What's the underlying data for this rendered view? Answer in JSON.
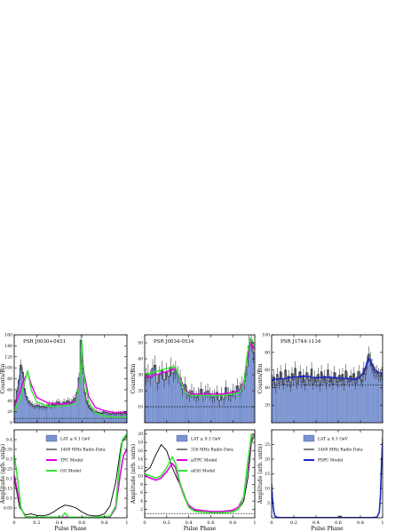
{
  "figure": {
    "xlabel": "Pulse Phase",
    "colors": {
      "hist_fill": "#7b93d0",
      "hist_edge": "#3d4e8a",
      "lat_data": "#222222",
      "tpc": "#e000e0",
      "og": "#33e633",
      "pspc": "#1a28c8",
      "radio": "#000000",
      "background_line": "#000000"
    }
  },
  "chart_data": [
    {
      "type": "bar",
      "panel": "J0030-top",
      "annotation": "PSR J0030+0451",
      "ylabel": "Counts/Bin",
      "x_ticks": [
        0,
        0.2,
        0.4,
        0.6,
        0.8,
        1
      ],
      "xlim": [
        0,
        1
      ],
      "ylim": [
        0,
        160
      ],
      "y_ticks": [
        0,
        20,
        40,
        60,
        80,
        100,
        120,
        140,
        160
      ],
      "background_level": 8,
      "counts": [
        37,
        58,
        78,
        105,
        92,
        62,
        48,
        40,
        36,
        33,
        30,
        31,
        32,
        30,
        29,
        30,
        28,
        31,
        33,
        30,
        34,
        32,
        36,
        38,
        35,
        34,
        38,
        36,
        40,
        38,
        37,
        42,
        45,
        55,
        82,
        150,
        98,
        55,
        40,
        32,
        27,
        24,
        22,
        21,
        19,
        18,
        17,
        20,
        19,
        18,
        17,
        16,
        18,
        16,
        17,
        18,
        17,
        16,
        18,
        17
      ],
      "series": [
        {
          "name": "TPC Model",
          "x": [
            0,
            0.05,
            0.08,
            0.12,
            0.15,
            0.2,
            0.3,
            0.4,
            0.5,
            0.55,
            0.58,
            0.6,
            0.62,
            0.66,
            0.72,
            0.8,
            0.9,
            1.0
          ],
          "y": [
            30,
            55,
            75,
            92,
            70,
            46,
            36,
            34,
            35,
            40,
            70,
            128,
            90,
            48,
            28,
            22,
            18,
            20
          ]
        },
        {
          "name": "OG Model",
          "x": [
            0,
            0.05,
            0.08,
            0.12,
            0.15,
            0.2,
            0.3,
            0.4,
            0.5,
            0.55,
            0.58,
            0.6,
            0.62,
            0.66,
            0.72,
            0.8,
            0.9,
            1.0
          ],
          "y": [
            20,
            40,
            65,
            95,
            60,
            38,
            30,
            30,
            32,
            36,
            66,
            150,
            82,
            38,
            18,
            12,
            10,
            10
          ]
        }
      ]
    },
    {
      "type": "line",
      "panel": "J0030-bottom",
      "ylabel": "Amplitude (arb. units)",
      "xlabel": "Pulse Phase",
      "xlim": [
        0,
        1
      ],
      "ylim": [
        0,
        0.45
      ],
      "x_ticks": [
        0,
        0.2,
        0.4,
        0.6,
        0.8,
        1
      ],
      "x_tick_labels": [
        "0",
        "0.2",
        "0.4",
        "0.6",
        "0.8",
        "1"
      ],
      "y_ticks": [
        0.05,
        0.1,
        0.15,
        0.2,
        0.25,
        0.3,
        0.35,
        0.4
      ],
      "y_tick_labels": [
        "0.05",
        "0.1",
        "0.15",
        "0.2",
        "0.25",
        "0.3",
        "0.35",
        "0.4"
      ],
      "legend": [
        "LAT ≥ 0.1 GeV",
        "1400 MHz Radio Data",
        "TPC Model",
        "OG Model"
      ],
      "series": [
        {
          "name": "1400 MHz Radio Data",
          "color_key": "radio",
          "x": [
            0,
            0.05,
            0.1,
            0.15,
            0.2,
            0.25,
            0.3,
            0.35,
            0.4,
            0.45,
            0.5,
            0.55,
            0.6,
            0.65,
            0.7,
            0.75,
            0.8,
            0.85,
            0.9,
            0.95,
            1.0
          ],
          "y": [
            0.2,
            0.05,
            0.015,
            0.02,
            0.012,
            0.01,
            0.015,
            0.03,
            0.05,
            0.065,
            0.06,
            0.05,
            0.03,
            0.015,
            0.01,
            0.01,
            0.02,
            0.06,
            0.18,
            0.38,
            0.42
          ]
        },
        {
          "name": "TPC Model",
          "color_key": "tpc",
          "x": [
            0,
            0.03,
            0.06,
            0.1,
            0.2,
            0.3,
            0.5,
            0.7,
            0.85,
            0.9,
            0.94,
            0.97,
            1.0
          ],
          "y": [
            0.22,
            0.13,
            0.05,
            0.005,
            0.003,
            0.003,
            0.002,
            0.002,
            0.005,
            0.05,
            0.22,
            0.32,
            0.35
          ]
        },
        {
          "name": "OG Model",
          "color_key": "og",
          "x": [
            0,
            0.03,
            0.06,
            0.1,
            0.2,
            0.3,
            0.42,
            0.45,
            0.48,
            0.55,
            0.7,
            0.85,
            0.9,
            0.93,
            0.96,
            1.0
          ],
          "y": [
            0.32,
            0.2,
            0.05,
            0.005,
            0.003,
            0.003,
            0.004,
            0.025,
            0.004,
            0.002,
            0.002,
            0.008,
            0.06,
            0.25,
            0.4,
            0.43
          ]
        }
      ]
    },
    {
      "type": "bar",
      "panel": "J0034-top",
      "annotation": "PSR J0034-0534",
      "ylabel": "Counts/Bin",
      "x_ticks": [
        0,
        0.2,
        0.4,
        0.6,
        0.8,
        1
      ],
      "xlim": [
        0,
        1
      ],
      "ylim": [
        0,
        55
      ],
      "y_ticks": [
        10,
        20,
        30,
        40,
        50
      ],
      "y_tick_labels": [
        "10",
        "20",
        "30",
        "40",
        "50"
      ],
      "background_level": 10,
      "counts": [
        29,
        31,
        28,
        34,
        36,
        25,
        30,
        33,
        27,
        32,
        29,
        35,
        31,
        33,
        30,
        28,
        21,
        24,
        19,
        17,
        20,
        18,
        16,
        18,
        21,
        17,
        19,
        20,
        18,
        16,
        17,
        19,
        14,
        18,
        15,
        22,
        18,
        17,
        20,
        19,
        23,
        21,
        24,
        26,
        35,
        48,
        52,
        44
      ],
      "series": [
        {
          "name": "TPC Model",
          "x": [
            0,
            0.1,
            0.2,
            0.28,
            0.32,
            0.36,
            0.42,
            0.5,
            0.6,
            0.7,
            0.8,
            0.86,
            0.9,
            0.93,
            0.96,
            1.0
          ],
          "y": [
            28,
            30,
            32,
            34,
            28,
            21,
            18,
            18,
            18,
            18,
            19,
            20,
            25,
            40,
            50,
            46
          ]
        },
        {
          "name": "OG Model",
          "x": [
            0,
            0.1,
            0.2,
            0.28,
            0.32,
            0.36,
            0.42,
            0.5,
            0.6,
            0.7,
            0.8,
            0.86,
            0.9,
            0.93,
            0.96,
            1.0
          ],
          "y": [
            30,
            32,
            34,
            35,
            27,
            20,
            17,
            17,
            17,
            17,
            18,
            19,
            24,
            42,
            53,
            48
          ]
        }
      ]
    },
    {
      "type": "line",
      "panel": "J0034-bottom",
      "ylabel": "Amplitude (arb. units)",
      "xlabel": "Pulse Phase",
      "xlim": [
        0,
        1
      ],
      "ylim": [
        0,
        21
      ],
      "x_ticks": [
        0,
        0.2,
        0.4,
        0.6,
        0.8,
        1
      ],
      "x_tick_labels": [
        "0",
        "0.2",
        "0.4",
        "0.6",
        "0.8",
        "1"
      ],
      "y_ticks": [
        2,
        4,
        6,
        8,
        10,
        12,
        14,
        16,
        18,
        20
      ],
      "y_tick_labels": [
        "2",
        "4",
        "6",
        "8",
        "10",
        "12",
        "14",
        "16",
        "18",
        "20"
      ],
      "background_level": 1,
      "legend": [
        "LAT ≥ 0.1 GeV",
        "326 MHz Radio Data",
        "alTPC Model",
        "alOG Model"
      ],
      "series": [
        {
          "name": "326 MHz Radio Data",
          "color_key": "radio",
          "x": [
            0,
            0.05,
            0.1,
            0.15,
            0.2,
            0.25,
            0.3,
            0.34,
            0.38,
            0.42,
            0.5,
            0.6,
            0.7,
            0.8,
            0.85,
            0.9,
            0.94,
            0.97,
            1.0
          ],
          "y": [
            11,
            12,
            15,
            17.5,
            16,
            12,
            9,
            7,
            4,
            2,
            1.5,
            1.2,
            1.2,
            1.5,
            2,
            4,
            10,
            18,
            20
          ]
        },
        {
          "name": "alTPC Model",
          "color_key": "tpc",
          "x": [
            0,
            0.05,
            0.1,
            0.15,
            0.2,
            0.25,
            0.28,
            0.32,
            0.36,
            0.4,
            0.45,
            0.5,
            0.6,
            0.7,
            0.8,
            0.85,
            0.9,
            0.94,
            0.97,
            1.0
          ],
          "y": [
            10,
            9.5,
            9,
            9.5,
            11,
            13,
            12,
            8,
            5,
            3,
            2,
            1.8,
            1.5,
            1.5,
            1.8,
            2.5,
            5,
            13,
            19,
            20
          ]
        },
        {
          "name": "alOG Model",
          "color_key": "og",
          "x": [
            0,
            0.05,
            0.1,
            0.15,
            0.2,
            0.25,
            0.28,
            0.32,
            0.36,
            0.4,
            0.45,
            0.5,
            0.6,
            0.7,
            0.8,
            0.85,
            0.9,
            0.94,
            0.97,
            1.0
          ],
          "y": [
            10.5,
            10,
            9.5,
            10,
            12,
            14.5,
            13,
            8.5,
            5,
            2.5,
            1.6,
            1.4,
            1.2,
            1.2,
            1.4,
            2,
            5,
            14,
            20,
            19
          ]
        }
      ]
    },
    {
      "type": "bar",
      "panel": "J1744-top",
      "annotation": "PSR J1744-1134",
      "ylabel": "Counts/Bin",
      "x_ticks": [
        0,
        0.2,
        0.4,
        0.6,
        0.8,
        1
      ],
      "xlim": [
        0,
        1
      ],
      "ylim": [
        0,
        100
      ],
      "y_ticks": [
        20,
        40,
        60,
        80,
        100
      ],
      "y_tick_labels": [
        "20",
        "40",
        "60",
        "80",
        "100"
      ],
      "background_level": 43,
      "counts": [
        48,
        52,
        40,
        55,
        45,
        58,
        50,
        44,
        60,
        47,
        53,
        41,
        56,
        49,
        62,
        45,
        51,
        58,
        46,
        54,
        43,
        57,
        50,
        48,
        61,
        44,
        52,
        47,
        55,
        42,
        58,
        49,
        53,
        45,
        60,
        47,
        52,
        44,
        57,
        50,
        46,
        54,
        48,
        55,
        43,
        59,
        51,
        47,
        53,
        49,
        56,
        45,
        52,
        58,
        50,
        47,
        62,
        55,
        68,
        78,
        72,
        65,
        60,
        57,
        58,
        55,
        53,
        56
      ],
      "series": [
        {
          "name": "PSPC Model",
          "x": [
            0,
            0.1,
            0.2,
            0.3,
            0.4,
            0.5,
            0.6,
            0.7,
            0.76,
            0.8,
            0.84,
            0.87,
            0.9,
            0.93,
            0.97,
            1.0
          ],
          "y": [
            49,
            50,
            52,
            53,
            51,
            52,
            51,
            50,
            49,
            52,
            60,
            73,
            68,
            60,
            57,
            56
          ]
        }
      ]
    },
    {
      "type": "line",
      "panel": "J1744-bottom",
      "ylabel": "Amplitude (arb. units)",
      "xlabel": "Pulse Phase",
      "xlim": [
        0,
        1
      ],
      "ylim": [
        0,
        30
      ],
      "x_ticks": [
        0,
        0.2,
        0.4,
        0.6,
        0.8,
        1
      ],
      "x_tick_labels": [
        "0",
        "0.2",
        "0.4",
        "0.6",
        "0.8",
        "1"
      ],
      "y_ticks": [
        5,
        10,
        15,
        20,
        25
      ],
      "y_tick_labels": [
        "5",
        "10",
        "15",
        "20",
        "25"
      ],
      "legend": [
        "LAT ≥ 0.1 GeV",
        "1400 MHz Radio Data",
        "PSPC Model"
      ],
      "series": [
        {
          "name": "1400 MHz Radio Data",
          "color_key": "radio",
          "x": [
            0,
            0.01,
            0.02,
            0.03,
            0.05,
            0.1,
            0.3,
            0.5,
            0.6,
            0.62,
            0.64,
            0.7,
            0.9,
            0.95,
            0.97,
            0.98,
            0.99,
            1.0
          ],
          "y": [
            12,
            6,
            2,
            0.5,
            0.1,
            0.05,
            0.05,
            0.05,
            0.1,
            0.6,
            0.1,
            0.05,
            0.05,
            0.2,
            2,
            8,
            20,
            28
          ]
        },
        {
          "name": "PSPC Model",
          "color_key": "pspc",
          "x": [
            0,
            0.01,
            0.02,
            0.03,
            0.05,
            0.1,
            0.3,
            0.5,
            0.7,
            0.9,
            0.95,
            0.97,
            0.98,
            0.99,
            1.0
          ],
          "y": [
            10,
            5,
            2,
            0.6,
            0.15,
            0.05,
            0.05,
            0.05,
            0.05,
            0.05,
            0.2,
            1.8,
            7,
            18,
            25
          ]
        }
      ]
    }
  ]
}
